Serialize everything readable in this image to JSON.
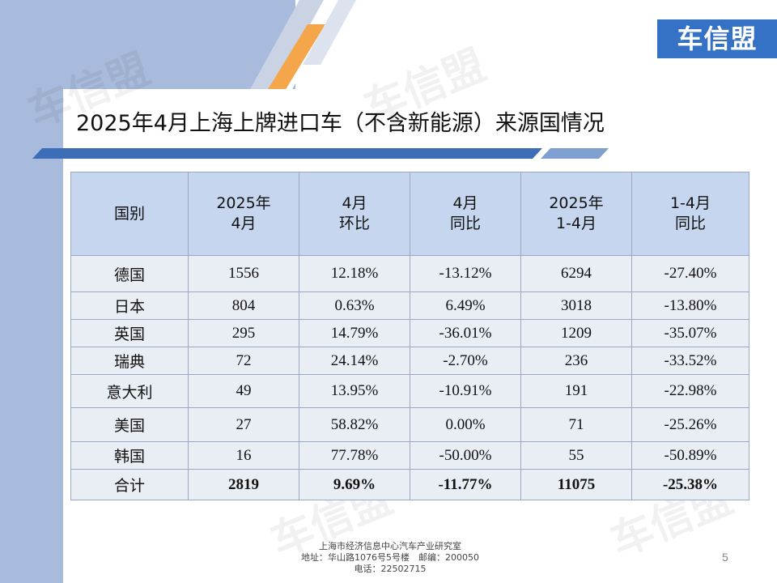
{
  "logo_text": "车信盟",
  "watermark_text": "车信盟",
  "title": "2025年4月上海上牌进口车（不含新能源）来源国情况",
  "table": {
    "headers": [
      [
        "国别"
      ],
      [
        "2025年",
        "4月"
      ],
      [
        "4月",
        "环比"
      ],
      [
        "4月",
        "同比"
      ],
      [
        "2025年",
        "1-4月"
      ],
      [
        "1-4月",
        "同比"
      ]
    ],
    "rows": [
      {
        "country": "德国",
        "apr": "1556",
        "mom": "12.18%",
        "yoy": "-13.12%",
        "ytd": "6294",
        "ytd_yoy": "-27.40%"
      },
      {
        "country": "日本",
        "apr": "804",
        "mom": "0.63%",
        "yoy": "6.49%",
        "ytd": "3018",
        "ytd_yoy": "-13.80%"
      },
      {
        "country": "英国",
        "apr": "295",
        "mom": "14.79%",
        "yoy": "-36.01%",
        "ytd": "1209",
        "ytd_yoy": "-35.07%"
      },
      {
        "country": "瑞典",
        "apr": "72",
        "mom": "24.14%",
        "yoy": "-2.70%",
        "ytd": "236",
        "ytd_yoy": "-33.52%"
      },
      {
        "country": "意大利",
        "apr": "49",
        "mom": "13.95%",
        "yoy": "-10.91%",
        "ytd": "191",
        "ytd_yoy": "-22.98%"
      },
      {
        "country": "美国",
        "apr": "27",
        "mom": "58.82%",
        "yoy": "0.00%",
        "ytd": "71",
        "ytd_yoy": "-25.26%"
      },
      {
        "country": "韩国",
        "apr": "16",
        "mom": "77.78%",
        "yoy": "-50.00%",
        "ytd": "55",
        "ytd_yoy": "-50.89%"
      }
    ],
    "total": {
      "country": "合计",
      "apr": "2819",
      "mom": "9.69%",
      "yoy": "-11.77%",
      "ytd": "11075",
      "ytd_yoy": "-25.38%"
    }
  },
  "footer": {
    "line1": "上海市经济信息中心汽车产业研究室",
    "line2": "地址：华山路1076号5号楼　邮编：200050",
    "line3": "电话：22502715"
  },
  "page_number": "5",
  "colors": {
    "accent_blue": "#3572c6",
    "side_blue": "#a9bbdc",
    "orange_stripe": "#f5a54a",
    "header_fill": "#c5d6ee",
    "row_fill": "#e9edf4"
  }
}
